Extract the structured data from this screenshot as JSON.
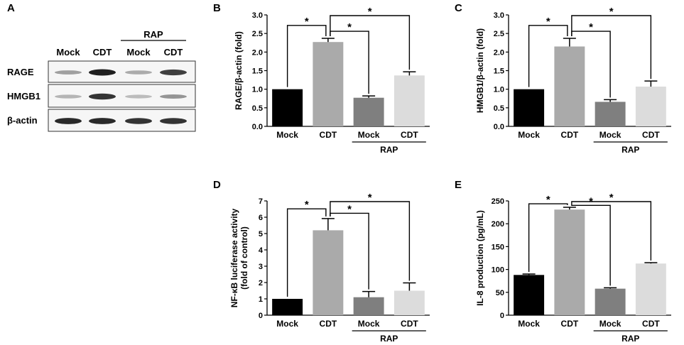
{
  "panel_a": {
    "letter": "A",
    "group_label": "RAP",
    "columns": [
      "Mock",
      "CDT",
      "Mock",
      "CDT"
    ],
    "rows": [
      {
        "label": "RAGE",
        "intensities": [
          0.35,
          0.95,
          0.3,
          0.8
        ]
      },
      {
        "label": "HMGB1",
        "intensities": [
          0.25,
          0.85,
          0.22,
          0.4
        ]
      },
      {
        "label": "β-actin",
        "intensities": [
          0.9,
          0.9,
          0.85,
          0.85
        ]
      }
    ]
  },
  "chart_data": [
    {
      "panel": "B",
      "type": "bar",
      "categories": [
        "Mock",
        "CDT",
        "Mock",
        "CDT"
      ],
      "values": [
        1.0,
        2.27,
        0.77,
        1.37
      ],
      "errors": [
        0,
        0.1,
        0.05,
        0.1
      ],
      "colors": [
        "#000000",
        "#aaaaaa",
        "#7f7f7f",
        "#dcdcdc"
      ],
      "ylabel": "RAGE/β-actin (fold)",
      "ylim": [
        0,
        3.0
      ],
      "yticks": [
        "0.0",
        "0.5",
        "1.0",
        "1.5",
        "2.0",
        "2.5",
        "3.0"
      ],
      "group_label": "RAP",
      "significance": [
        {
          "from": 0,
          "to": 1,
          "label": "*"
        },
        {
          "from": 1,
          "to": 2,
          "label": "*"
        },
        {
          "from": 1,
          "to": 3,
          "label": "*"
        }
      ]
    },
    {
      "panel": "C",
      "type": "bar",
      "categories": [
        "Mock",
        "CDT",
        "Mock",
        "CDT"
      ],
      "values": [
        1.0,
        2.15,
        0.66,
        1.07
      ],
      "errors": [
        0,
        0.22,
        0.06,
        0.15
      ],
      "colors": [
        "#000000",
        "#aaaaaa",
        "#7f7f7f",
        "#dcdcdc"
      ],
      "ylabel": "HMGB1/β-actin (fold)",
      "ylim": [
        0,
        3.0
      ],
      "yticks": [
        "0.0",
        "0.5",
        "1.0",
        "1.5",
        "2.0",
        "2.5",
        "3.0"
      ],
      "group_label": "RAP",
      "significance": [
        {
          "from": 0,
          "to": 1,
          "label": "*"
        },
        {
          "from": 1,
          "to": 2,
          "label": "*"
        },
        {
          "from": 1,
          "to": 3,
          "label": "*"
        }
      ]
    },
    {
      "panel": "D",
      "type": "bar",
      "categories": [
        "Mock",
        "CDT",
        "Mock",
        "CDT"
      ],
      "values": [
        1.0,
        5.2,
        1.1,
        1.5
      ],
      "errors": [
        0,
        0.72,
        0.35,
        0.48
      ],
      "colors": [
        "#000000",
        "#aaaaaa",
        "#7f7f7f",
        "#dcdcdc"
      ],
      "ylabel": "NF-κB luciferase activity",
      "ylabel2": "(fold of control)",
      "ylim": [
        0,
        7
      ],
      "yticks": [
        "0",
        "1",
        "2",
        "3",
        "4",
        "5",
        "6",
        "7"
      ],
      "group_label": "RAP",
      "significance": [
        {
          "from": 0,
          "to": 1,
          "label": "*"
        },
        {
          "from": 1,
          "to": 2,
          "label": "*"
        },
        {
          "from": 1,
          "to": 3,
          "label": "*"
        }
      ]
    },
    {
      "panel": "E",
      "type": "bar",
      "categories": [
        "Mock",
        "CDT",
        "Mock",
        "CDT"
      ],
      "values": [
        88,
        231,
        58,
        113
      ],
      "errors": [
        2,
        5,
        2,
        2
      ],
      "colors": [
        "#000000",
        "#aaaaaa",
        "#7f7f7f",
        "#dcdcdc"
      ],
      "ylabel": "IL-8 production (pg/mL)",
      "ylim": [
        0,
        250
      ],
      "yticks": [
        "0",
        "50",
        "100",
        "150",
        "200",
        "250"
      ],
      "group_label": "RAP",
      "significance": [
        {
          "from": 0,
          "to": 1,
          "label": "*"
        },
        {
          "from": 1,
          "to": 2,
          "label": "*"
        },
        {
          "from": 1,
          "to": 3,
          "label": "*"
        }
      ]
    }
  ]
}
